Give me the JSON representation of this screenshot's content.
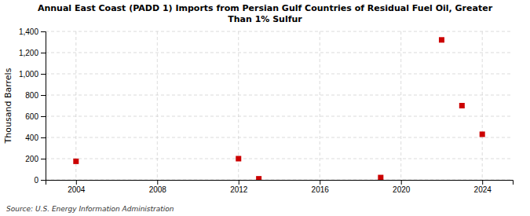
{
  "chart_data": {
    "type": "scatter",
    "title": "Annual East Coast (PADD 1) Imports from Persian Gulf Countries of Residual Fuel Oil, Greater\nThan 1% Sulfur",
    "ylabel": "Thousand Barrels",
    "annotations": [
      "Source: U.S. Energy Information Administration"
    ],
    "x": [
      2004,
      2012,
      2013,
      2019,
      2022,
      2023,
      2024
    ],
    "values": [
      175,
      200,
      10,
      22,
      1320,
      700,
      430
    ],
    "color": "#cc0000",
    "marker": "square",
    "grid": true,
    "xlim": [
      2002.5,
      2025.5
    ],
    "xticks": [
      2004,
      2008,
      2012,
      2016,
      2020,
      2024
    ],
    "ylim": [
      0,
      1400
    ],
    "yticks": [
      0,
      200,
      400,
      600,
      {
        "value": 800,
        "label": "800"
      },
      {
        "value": 1000,
        "label": "1,000"
      },
      {
        "value": 1200,
        "label": "1,200"
      },
      {
        "value": 1400,
        "label": "1,400"
      }
    ]
  }
}
